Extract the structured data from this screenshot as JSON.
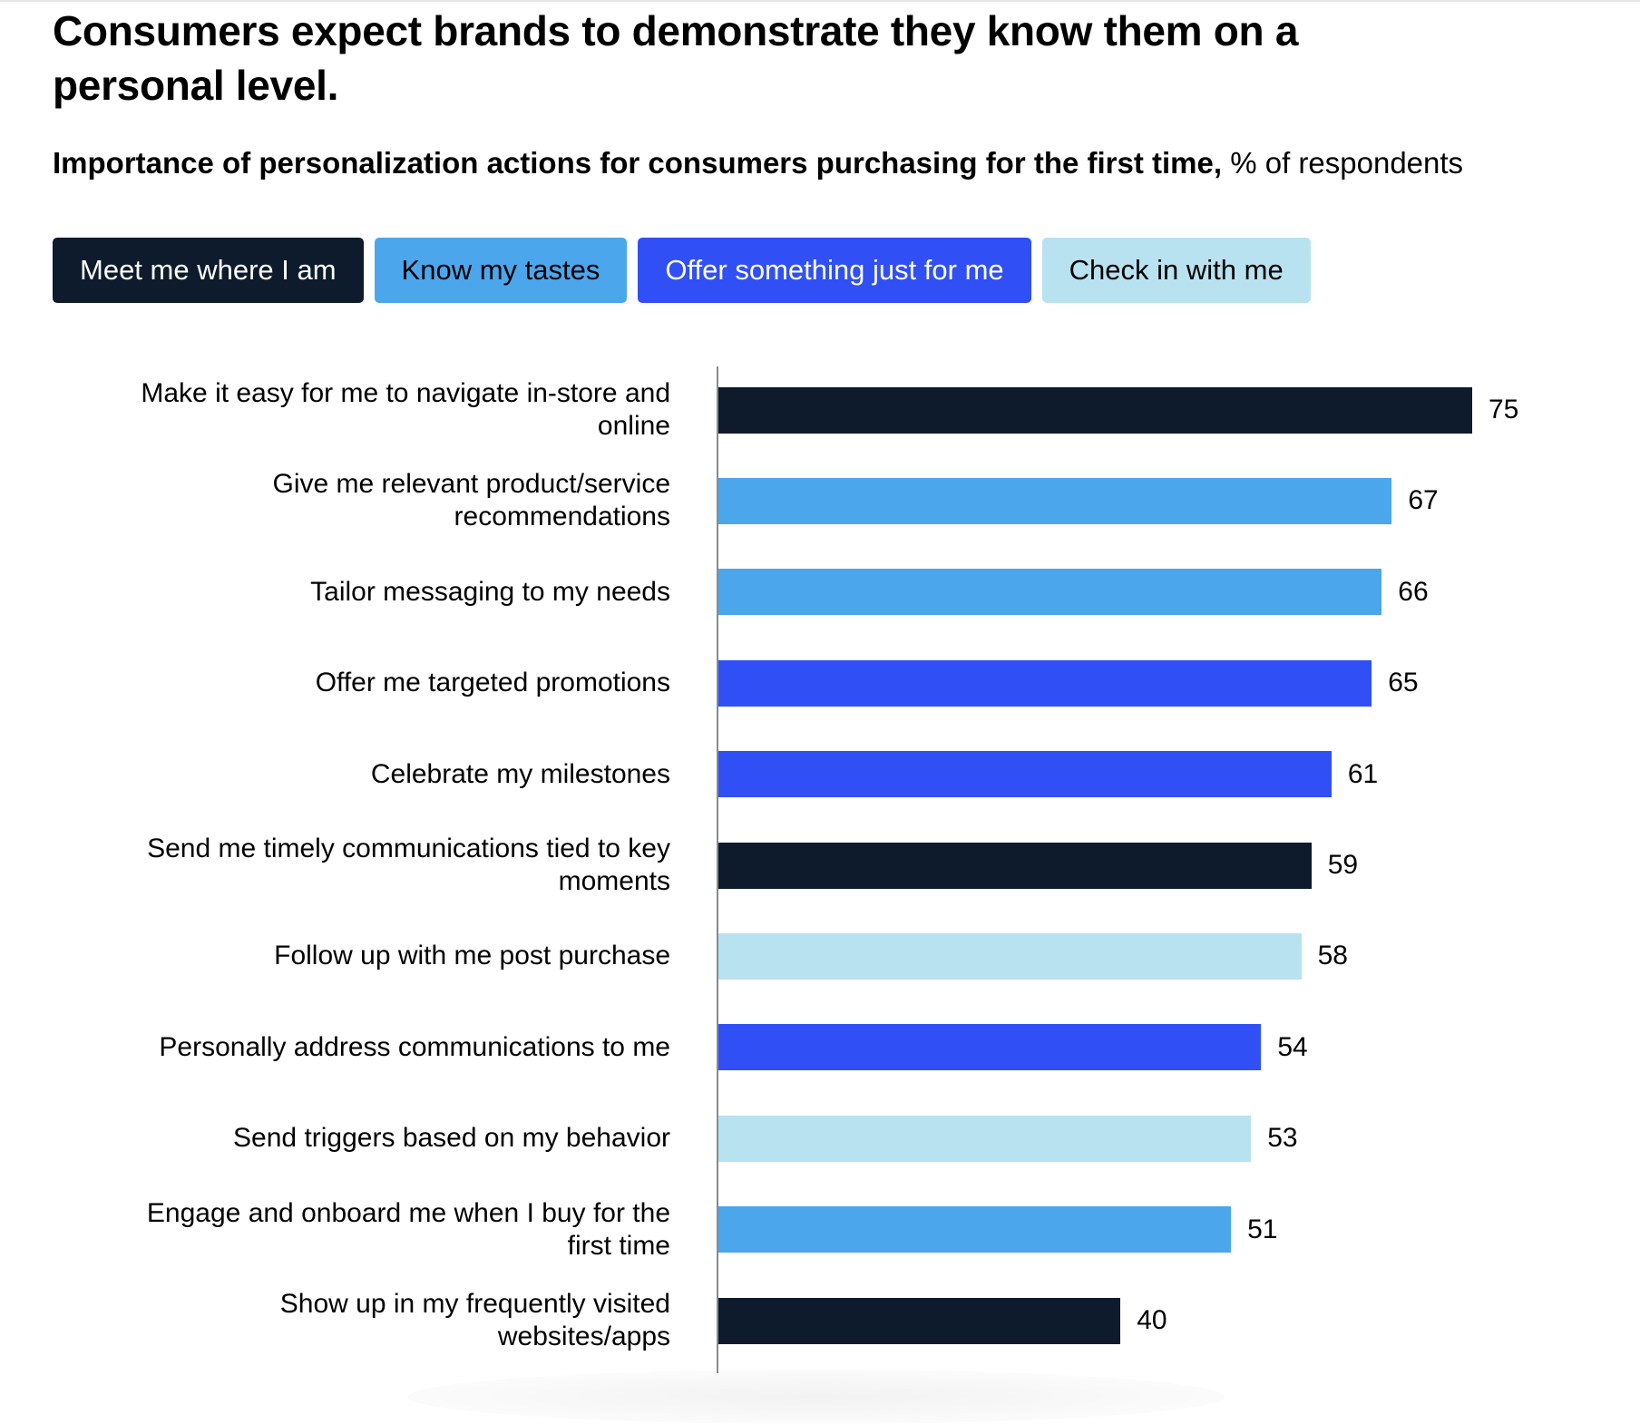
{
  "header": {
    "title": "Consumers expect brands to demonstrate they know them on a personal level.",
    "subtitle_bold": "Importance of personalization actions for consumers purchasing for the first time,",
    "subtitle_unit": " % of respondents"
  },
  "legend": [
    {
      "label": "Meet me where I am",
      "color": "#0d1b2c",
      "text_color": "#ffffff"
    },
    {
      "label": "Know my tastes",
      "color": "#4ba6ec",
      "text_color": "#000000"
    },
    {
      "label": "Offer something just for me",
      "color": "#3050f5",
      "text_color": "#ffffff"
    },
    {
      "label": "Check in with me",
      "color": "#b8e2ef",
      "text_color": "#000000"
    }
  ],
  "chart_data": {
    "type": "bar",
    "orientation": "horizontal",
    "title": "Importance of personalization actions for consumers purchasing for the first time",
    "unit": "% of respondents",
    "xlim": [
      0,
      75
    ],
    "grid": false,
    "legend_placement": "top-left",
    "categories": [
      "Make it easy for me to navigate in-store and online",
      "Give me relevant product/service recommendations",
      "Tailor messaging to my needs",
      "Offer me targeted promotions",
      "Celebrate my milestones",
      "Send me timely communications tied to key moments",
      "Follow up with me post purchase",
      "Personally address communications to me",
      "Send triggers based on my behavior",
      "Engage and onboard me when I buy for the first time",
      "Show up in my frequently visited websites/apps"
    ],
    "values": [
      75,
      67,
      66,
      65,
      61,
      59,
      58,
      54,
      53,
      51,
      40
    ],
    "groups": [
      "Meet me where I am",
      "Know my tastes",
      "Know my tastes",
      "Offer something just for me",
      "Offer something just for me",
      "Meet me where I am",
      "Check in with me",
      "Offer something just for me",
      "Check in with me",
      "Know my tastes",
      "Meet me where I am"
    ]
  }
}
